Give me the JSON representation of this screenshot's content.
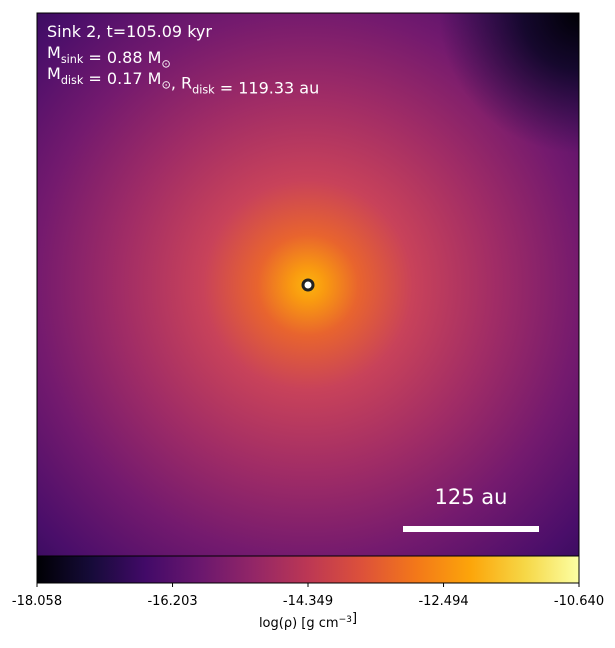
{
  "chart_data": {
    "type": "density-map",
    "annotations": [
      [
        {
          "text": "Sink 2, t=105.09 kyr"
        }
      ],
      [
        {
          "text": "M"
        },
        {
          "sub": "sink"
        },
        {
          "text": " = 0.88 M"
        },
        {
          "sub": "⊙"
        }
      ],
      [
        {
          "text": "M"
        },
        {
          "sub": "disk"
        },
        {
          "text": " = 0.17 M"
        },
        {
          "sub": "⊙"
        },
        {
          "text": ", R"
        },
        {
          "sub": "disk"
        },
        {
          "text": " = 119.33 au"
        }
      ]
    ],
    "scale_bar": "125 au",
    "colormap": "inferno",
    "colorbar_label": [
      {
        "text": "log(ρ) [g cm"
      },
      {
        "sup": "−3"
      },
      {
        "text": "]"
      }
    ],
    "clim": [
      -18.058,
      -10.64
    ],
    "cticks": [
      -18.058,
      -16.203,
      -14.349,
      -12.494,
      {
        "value": -10.64,
        "label": "-10.640"
      }
    ]
  }
}
